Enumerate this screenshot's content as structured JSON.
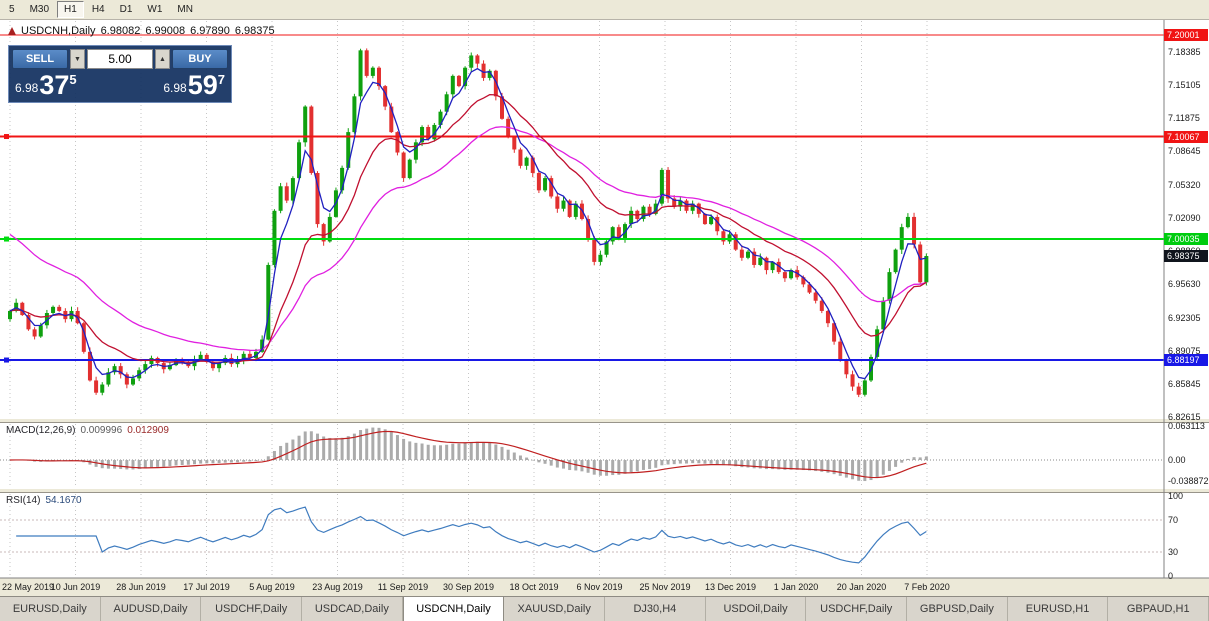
{
  "toolbar": {
    "timeframes": [
      "5",
      "M30",
      "H1",
      "H4",
      "D1",
      "W1",
      "MN"
    ],
    "active": "H1"
  },
  "chart_info": {
    "symbol": "USDCNH,Daily",
    "open": "6.98082",
    "high": "6.99008",
    "low": "6.97890",
    "close": "6.98375"
  },
  "trade_panel": {
    "sell_label": "SELL",
    "buy_label": "BUY",
    "volume": "5.00",
    "sell_prefix": "6.98",
    "sell_big": "37",
    "sell_sup": "5",
    "buy_prefix": "6.98",
    "buy_big": "59",
    "buy_sup": "7"
  },
  "icons": {
    "spin_down": "▼",
    "spin_up": "▲"
  },
  "indicator_labels": {
    "macd": "MACD(12,26,9)",
    "macd_value1": "0.009996",
    "macd_value2": "0.012909",
    "rsi": "RSI(14)",
    "rsi_value": "54.1670"
  },
  "price_axis": [
    "7.18385",
    "7.15105",
    "7.11875",
    "7.08645",
    "7.05320",
    "7.02090",
    "6.98860",
    "6.95630",
    "6.92305",
    "6.89075",
    "6.85845",
    "6.82615"
  ],
  "price_tags": [
    {
      "text": "7.20001",
      "color": "#f01414"
    },
    {
      "text": "7.10067",
      "color": "#f01414"
    },
    {
      "text": "7.00035",
      "color": "#00cc10"
    },
    {
      "text": "6.98375",
      "color": "#10151d"
    },
    {
      "text": "6.88197",
      "color": "#1818e6"
    }
  ],
  "macd_axis": [
    "0.063113",
    "0.00",
    "-0.038872"
  ],
  "rsi_axis": [
    "100",
    "70",
    "30",
    "0"
  ],
  "dates": [
    "22 May 2019",
    "10 Jun 2019",
    "28 Jun 2019",
    "17 Jul 2019",
    "5 Aug 2019",
    "23 Aug 2019",
    "11 Sep 2019",
    "30 Sep 2019",
    "18 Oct 2019",
    "6 Nov 2019",
    "25 Nov 2019",
    "13 Dec 2019",
    "1 Jan 2020",
    "20 Jan 2020",
    "7 Feb 2020"
  ],
  "tabs": {
    "items": [
      "EURUSD,Daily",
      "AUDUSD,Daily",
      "USDCHF,Daily",
      "USDCAD,Daily",
      "USDCNH,Daily",
      "XAUUSD,Daily",
      "DJ30,H4",
      "USDOil,Daily",
      "USDCHF,Daily",
      "GBPUSD,Daily",
      "EURUSD,H1",
      "GBPAUD,H1"
    ],
    "active_index": 4
  },
  "chart_data": {
    "type": "candlestick",
    "symbol": "USDCNH",
    "period": "Daily",
    "title": "USDCNH,Daily",
    "ohlc_current": {
      "open": 6.98082,
      "high": 6.99008,
      "low": 6.9789,
      "close": 6.98375
    },
    "last_price": 6.98375,
    "ylim": [
      6.8254,
      7.2069
    ],
    "y_axis_ticks": [
      7.18385,
      7.15105,
      7.11875,
      7.08645,
      7.0532,
      7.0209,
      6.9886,
      6.9563,
      6.92305,
      6.89075,
      6.85845,
      6.82615
    ],
    "x_tick_labels": [
      "22 May 2019",
      "10 Jun 2019",
      "28 Jun 2019",
      "17 Jul 2019",
      "5 Aug 2019",
      "23 Aug 2019",
      "11 Sep 2019",
      "30 Sep 2019",
      "18 Oct 2019",
      "6 Nov 2019",
      "25 Nov 2019",
      "13 Dec 2019",
      "1 Jan 2020",
      "20 Jan 2020",
      "7 Feb 2020"
    ],
    "closes": [
      6.93,
      6.938,
      6.926,
      6.912,
      6.905,
      6.916,
      6.928,
      6.934,
      6.93,
      6.922,
      6.93,
      6.918,
      6.89,
      6.862,
      6.85,
      6.858,
      6.87,
      6.876,
      6.868,
      6.858,
      6.864,
      6.872,
      6.878,
      6.884,
      6.879,
      6.873,
      6.877,
      6.883,
      6.88,
      6.876,
      6.882,
      6.887,
      6.88,
      6.874,
      6.879,
      6.884,
      6.878,
      6.882,
      6.888,
      6.884,
      6.89,
      6.902,
      6.975,
      7.028,
      7.052,
      7.038,
      7.06,
      7.095,
      7.13,
      7.065,
      7.015,
      6.998,
      7.022,
      7.048,
      7.07,
      7.105,
      7.14,
      7.185,
      7.16,
      7.168,
      7.15,
      7.13,
      7.105,
      7.085,
      7.06,
      7.078,
      7.095,
      7.11,
      7.098,
      7.112,
      7.125,
      7.142,
      7.16,
      7.15,
      7.168,
      7.18,
      7.172,
      7.158,
      7.165,
      7.14,
      7.118,
      7.1,
      7.088,
      7.072,
      7.08,
      7.065,
      7.048,
      7.06,
      7.042,
      7.03,
      7.038,
      7.022,
      7.035,
      7.02,
      7.0,
      6.978,
      6.985,
      6.998,
      7.012,
      7.0,
      7.015,
      7.028,
      7.02,
      7.032,
      7.025,
      7.035,
      7.068,
      7.04,
      7.032,
      7.038,
      7.028,
      7.035,
      7.025,
      7.015,
      7.022,
      7.008,
      6.998,
      7.005,
      6.99,
      6.982,
      6.988,
      6.975,
      6.982,
      6.97,
      6.978,
      6.968,
      6.962,
      6.97,
      6.963,
      6.956,
      6.948,
      6.94,
      6.93,
      6.918,
      6.9,
      6.882,
      6.868,
      6.856,
      6.848,
      6.862,
      6.885,
      6.912,
      6.94,
      6.968,
      6.99,
      7.012,
      7.022,
      6.995,
      6.958,
      6.98375
    ],
    "colors": {
      "up": "#0fa00f",
      "down": "#e23030",
      "ma_fast": "#2020c0",
      "ma_mid": "#c01030",
      "ma_slow": "#e020e0",
      "macd_histogram": "#ababab",
      "macd_signal": "#c02020",
      "rsi_line": "#3f7cbf"
    },
    "moving_average_periods": [
      4,
      15,
      30
    ],
    "hlines": [
      {
        "price": 7.20001,
        "color": "#f01414",
        "width": 1,
        "handle": false
      },
      {
        "price": 7.10067,
        "color": "#f01414",
        "width": 2,
        "handle": true
      },
      {
        "price": 7.00035,
        "color": "#00dc10",
        "width": 2,
        "handle": true
      },
      {
        "price": 6.88197,
        "color": "#1818e6",
        "width": 2,
        "handle": true
      }
    ],
    "indicators": {
      "macd": {
        "label": "MACD(12,26,9)",
        "params": [
          12,
          26,
          9
        ],
        "current_main": 0.009996,
        "current_signal": 0.012909,
        "axis": [
          0.063113,
          0.0,
          -0.038872
        ]
      },
      "rsi": {
        "label": "RSI(14)",
        "period": 14,
        "current": 54.167,
        "levels": [
          30,
          70
        ],
        "axis": [
          100,
          70,
          30,
          0
        ]
      }
    }
  }
}
